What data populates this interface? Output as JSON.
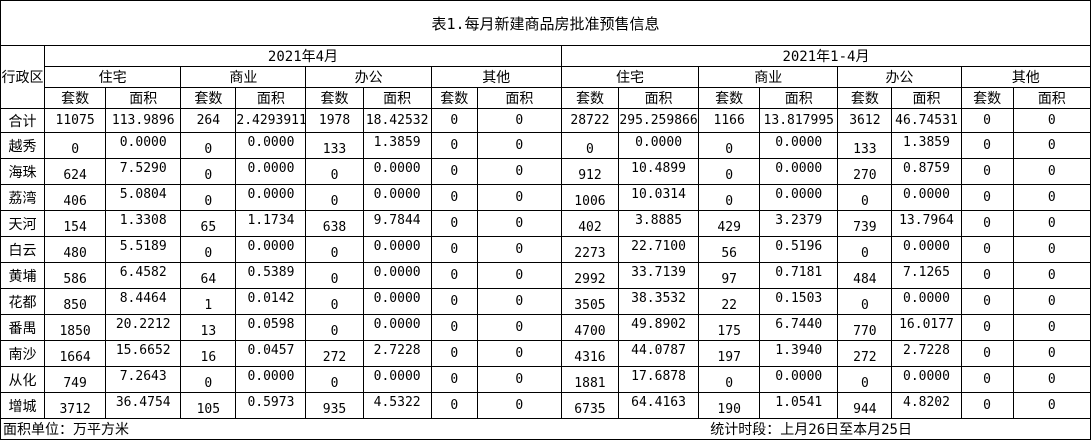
{
  "title": "表1.每月新建商品房批准预售信息",
  "district_header": "行政区",
  "periods": [
    "2021年4月",
    "2021年1-4月"
  ],
  "categories": [
    "住宅",
    "商业",
    "办公",
    "其他"
  ],
  "subheaders": [
    "套数",
    "面积"
  ],
  "rows": [
    {
      "district": "合计",
      "total": true,
      "values": [
        "11075",
        "113.9896",
        "264",
        "2.4293911",
        "1978",
        "18.42532",
        "0",
        "0",
        "28722",
        "295.259866",
        "1166",
        "13.817995",
        "3612",
        "46.74531",
        "0",
        "0"
      ]
    },
    {
      "district": "越秀",
      "values": [
        "0",
        "0.0000",
        "0",
        "0.0000",
        "133",
        "1.3859",
        "0",
        "0",
        "0",
        "0.0000",
        "0",
        "0.0000",
        "133",
        "1.3859",
        "0",
        "0"
      ]
    },
    {
      "district": "海珠",
      "values": [
        "624",
        "7.5290",
        "0",
        "0.0000",
        "0",
        "0.0000",
        "0",
        "0",
        "912",
        "10.4899",
        "0",
        "0.0000",
        "270",
        "0.8759",
        "0",
        "0"
      ]
    },
    {
      "district": "荔湾",
      "values": [
        "406",
        "5.0804",
        "0",
        "0.0000",
        "0",
        "0.0000",
        "0",
        "0",
        "1006",
        "10.0314",
        "0",
        "0.0000",
        "0",
        "0.0000",
        "0",
        "0"
      ]
    },
    {
      "district": "天河",
      "values": [
        "154",
        "1.3308",
        "65",
        "1.1734",
        "638",
        "9.7844",
        "0",
        "0",
        "402",
        "3.8885",
        "429",
        "3.2379",
        "739",
        "13.7964",
        "0",
        "0"
      ]
    },
    {
      "district": "白云",
      "values": [
        "480",
        "5.5189",
        "0",
        "0.0000",
        "0",
        "0.0000",
        "0",
        "0",
        "2273",
        "22.7100",
        "56",
        "0.5196",
        "0",
        "0.0000",
        "0",
        "0"
      ]
    },
    {
      "district": "黄埔",
      "values": [
        "586",
        "6.4582",
        "64",
        "0.5389",
        "0",
        "0.0000",
        "0",
        "0",
        "2992",
        "33.7139",
        "97",
        "0.7181",
        "484",
        "7.1265",
        "0",
        "0"
      ]
    },
    {
      "district": "花都",
      "values": [
        "850",
        "8.4464",
        "1",
        "0.0142",
        "0",
        "0.0000",
        "0",
        "0",
        "3505",
        "38.3532",
        "22",
        "0.1503",
        "0",
        "0.0000",
        "0",
        "0"
      ]
    },
    {
      "district": "番禺",
      "values": [
        "1850",
        "20.2212",
        "13",
        "0.0598",
        "0",
        "0.0000",
        "0",
        "0",
        "4700",
        "49.8902",
        "175",
        "6.7440",
        "770",
        "16.0177",
        "0",
        "0"
      ]
    },
    {
      "district": "南沙",
      "values": [
        "1664",
        "15.6652",
        "16",
        "0.0457",
        "272",
        "2.7228",
        "0",
        "0",
        "4316",
        "44.0787",
        "197",
        "1.3940",
        "272",
        "2.7228",
        "0",
        "0"
      ]
    },
    {
      "district": "从化",
      "values": [
        "749",
        "7.2643",
        "0",
        "0.0000",
        "0",
        "0.0000",
        "0",
        "0",
        "1881",
        "17.6878",
        "0",
        "0.0000",
        "0",
        "0.0000",
        "0",
        "0"
      ]
    },
    {
      "district": "增城",
      "values": [
        "3712",
        "36.4754",
        "105",
        "0.5973",
        "935",
        "4.5322",
        "0",
        "0",
        "6735",
        "64.4163",
        "190",
        "1.0541",
        "944",
        "4.8202",
        "0",
        "0"
      ]
    }
  ],
  "footer": {
    "unit": "面积单位：万平方米",
    "period": "统计时段：上月26日至本月25日"
  }
}
